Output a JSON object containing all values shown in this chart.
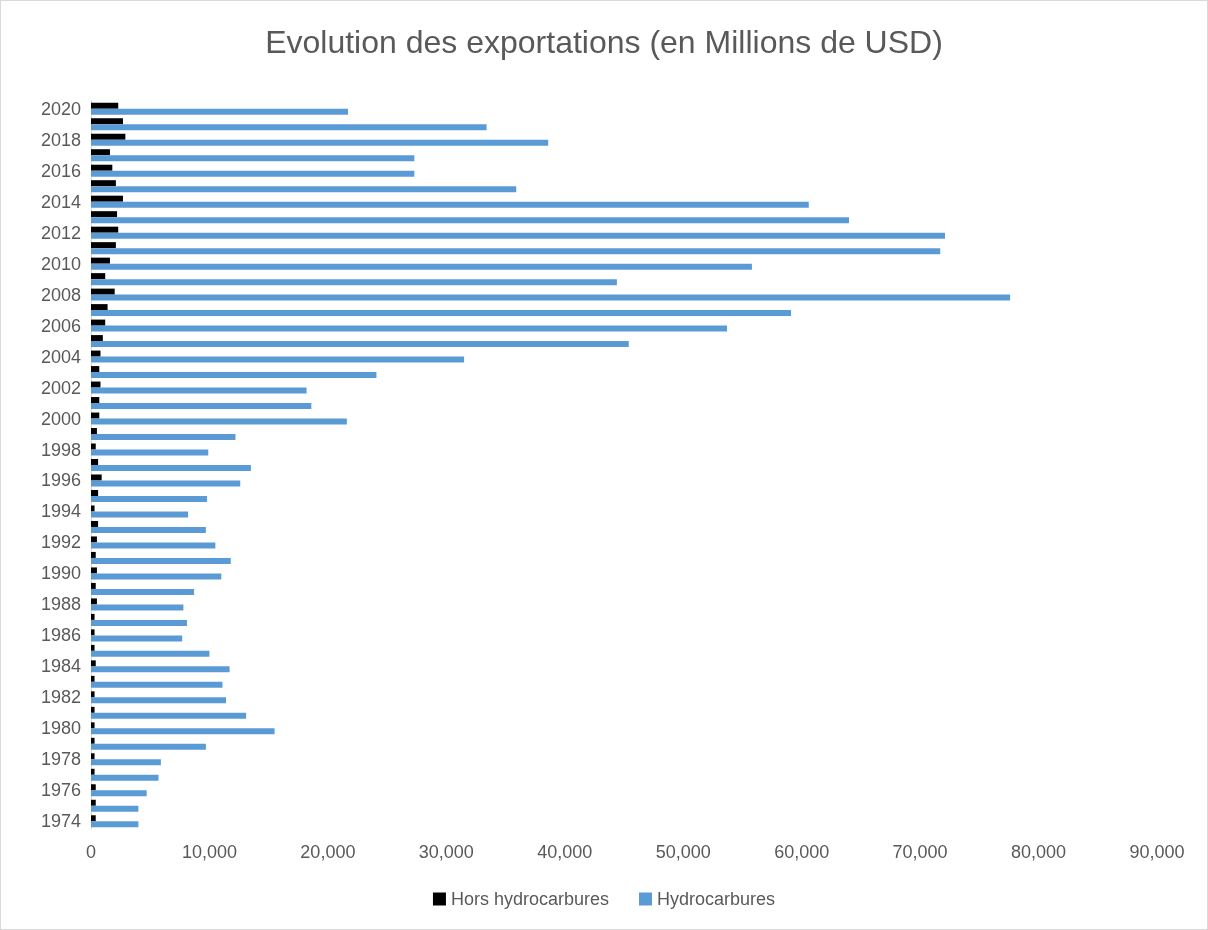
{
  "chart_data": {
    "type": "bar",
    "orientation": "horizontal",
    "title": "Evolution des exportations (en Millions de USD)",
    "categories": [
      "2020",
      null,
      "2018",
      null,
      "2016",
      null,
      "2014",
      null,
      "2012",
      null,
      "2010",
      null,
      "2008",
      null,
      "2006",
      null,
      "2004",
      null,
      "2002",
      null,
      "2000",
      null,
      "1998",
      null,
      "1996",
      null,
      "1994",
      null,
      "1992",
      null,
      "1990",
      null,
      "1988",
      null,
      "1986",
      null,
      "1984",
      null,
      "1982",
      null,
      "1980",
      null,
      "1978",
      null,
      "1976",
      null,
      "1974"
    ],
    "series": [
      {
        "name": "Hors hydrocarbures",
        "color": "#000000",
        "values": [
          2300,
          2700,
          2900,
          1600,
          1800,
          2100,
          2700,
          2200,
          2300,
          2100,
          1600,
          1200,
          2000,
          1400,
          1200,
          1000,
          800,
          700,
          800,
          700,
          700,
          500,
          400,
          600,
          900,
          600,
          300,
          600,
          500,
          400,
          500,
          400,
          500,
          300,
          300,
          300,
          400,
          300,
          300,
          300,
          300,
          300,
          300,
          300,
          400,
          400,
          400
        ]
      },
      {
        "name": "Hydrocarbures",
        "color": "#5b9bd5",
        "values": [
          21700,
          33400,
          38600,
          27300,
          27300,
          35900,
          60600,
          64000,
          72100,
          71700,
          55800,
          44400,
          77600,
          59100,
          53700,
          45400,
          31500,
          24100,
          18200,
          18600,
          21600,
          12200,
          9900,
          13500,
          12600,
          9800,
          8200,
          9700,
          10500,
          11800,
          11000,
          8700,
          7800,
          8100,
          7700,
          10000,
          11700,
          11100,
          11400,
          13100,
          15500,
          9700,
          5900,
          5700,
          4700,
          4000,
          4000
        ]
      }
    ],
    "xlim": [
      0,
      90000
    ],
    "xticks": [
      0,
      {
        "value": 10000,
        "label": "10,000"
      },
      {
        "value": 20000,
        "label": "20,000"
      },
      {
        "value": 30000,
        "label": "30,000"
      },
      {
        "value": 40000,
        "label": "40,000"
      },
      {
        "value": 50000,
        "label": "50,000"
      },
      {
        "value": 60000,
        "label": "60,000"
      },
      {
        "value": 70000,
        "label": "70,000"
      },
      {
        "value": 80000,
        "label": "80,000"
      },
      {
        "value": 90000,
        "label": "90,000"
      }
    ],
    "grid": false,
    "legend": "bottom"
  }
}
